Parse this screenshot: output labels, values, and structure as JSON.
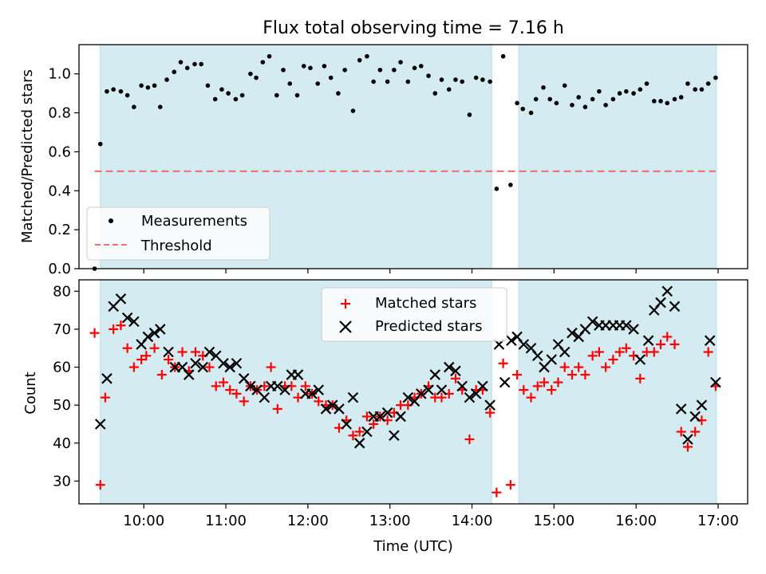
{
  "chart_data": [
    {
      "type": "scatter",
      "title": "Flux total observing time = 7.16 h",
      "xlabel": "",
      "ylabel": "Matched/Predicted stars",
      "xlim": [
        9.21,
        17.36
      ],
      "ylim": [
        0,
        1.15
      ],
      "yticks": [
        0.0,
        0.2,
        0.4,
        0.6,
        0.8,
        1.0
      ],
      "ytick_labels": [
        "0.0",
        "0.2",
        "0.4",
        "0.6",
        "0.8",
        "1.0"
      ],
      "shaded_ranges": [
        [
          9.47,
          14.24
        ],
        [
          14.57,
          16.98
        ]
      ],
      "legend_position": "lower-left",
      "series": [
        {
          "name": "Measurements",
          "marker": "dot",
          "color": "#000000",
          "x": [
            9.4,
            9.47,
            9.55,
            9.63,
            9.72,
            9.8,
            9.88,
            9.97,
            10.05,
            10.13,
            10.2,
            10.28,
            10.37,
            10.45,
            10.53,
            10.62,
            10.7,
            10.78,
            10.87,
            10.95,
            11.03,
            11.12,
            11.2,
            11.3,
            11.37,
            11.45,
            11.53,
            11.62,
            11.7,
            11.78,
            11.87,
            11.95,
            12.03,
            12.12,
            12.2,
            12.28,
            12.37,
            12.45,
            12.55,
            12.63,
            12.72,
            12.8,
            12.88,
            12.97,
            13.05,
            13.13,
            13.22,
            13.3,
            13.38,
            13.47,
            13.55,
            13.63,
            13.72,
            13.8,
            13.88,
            13.97,
            14.05,
            14.13,
            14.22,
            14.3,
            14.38,
            14.47,
            14.55,
            14.62,
            14.72,
            14.78,
            14.87,
            14.95,
            15.03,
            15.13,
            15.22,
            15.3,
            15.38,
            15.47,
            15.55,
            15.63,
            15.72,
            15.8,
            15.88,
            15.97,
            16.05,
            16.13,
            16.22,
            16.3,
            16.38,
            16.47,
            16.55,
            16.63,
            16.72,
            16.8,
            16.88,
            16.97
          ],
          "y": [
            0.0,
            0.64,
            0.91,
            0.92,
            0.91,
            0.89,
            0.83,
            0.94,
            0.93,
            0.94,
            0.83,
            0.97,
            1.01,
            1.06,
            1.03,
            1.05,
            1.05,
            0.94,
            0.87,
            0.92,
            0.9,
            0.87,
            0.89,
            1.0,
            0.98,
            1.06,
            1.09,
            0.89,
            1.02,
            0.95,
            0.89,
            1.04,
            1.03,
            0.95,
            1.04,
            0.98,
            0.9,
            1.02,
            0.81,
            1.07,
            1.09,
            0.96,
            1.02,
            0.96,
            1.02,
            1.06,
            0.96,
            1.03,
            1.04,
            0.99,
            0.9,
            0.97,
            0.92,
            0.97,
            0.96,
            0.79,
            0.98,
            0.97,
            0.96,
            0.41,
            1.09,
            0.43,
            0.85,
            0.82,
            0.8,
            0.87,
            0.93,
            0.87,
            0.85,
            0.94,
            0.84,
            0.88,
            0.83,
            0.87,
            0.91,
            0.84,
            0.87,
            0.9,
            0.91,
            0.9,
            0.92,
            0.95,
            0.86,
            0.86,
            0.85,
            0.87,
            0.88,
            0.95,
            0.92,
            0.92,
            0.95,
            0.98
          ]
        },
        {
          "name": "Threshold",
          "marker": "dashed-line",
          "color": "#f07070",
          "x": [
            9.4,
            16.97
          ],
          "y": [
            0.5,
            0.5
          ]
        }
      ]
    },
    {
      "type": "scatter",
      "title": "",
      "xlabel": "Time (UTC)",
      "ylabel": "Count",
      "xlim": [
        9.21,
        17.36
      ],
      "ylim": [
        24,
        83
      ],
      "yticks": [
        30,
        40,
        50,
        60,
        70,
        80
      ],
      "ytick_labels": [
        "30",
        "40",
        "50",
        "60",
        "70",
        "80"
      ],
      "xticks": [
        10,
        11,
        12,
        13,
        14,
        15,
        16,
        17
      ],
      "xtick_labels": [
        "10:00",
        "11:00",
        "12:00",
        "13:00",
        "14:00",
        "15:00",
        "16:00",
        "17:00"
      ],
      "shaded_ranges": [
        [
          9.47,
          14.24
        ],
        [
          14.57,
          16.98
        ]
      ],
      "legend_position": "top-center",
      "series": [
        {
          "name": "Matched stars",
          "marker": "plus",
          "color": "#ff0000",
          "x": [
            9.4,
            9.47,
            9.53,
            9.63,
            9.72,
            9.8,
            9.88,
            9.97,
            10.03,
            10.13,
            10.22,
            10.3,
            10.38,
            10.47,
            10.55,
            10.63,
            10.72,
            10.8,
            10.88,
            10.97,
            11.05,
            11.13,
            11.22,
            11.3,
            11.38,
            11.47,
            11.55,
            11.63,
            11.72,
            11.8,
            11.88,
            11.97,
            12.05,
            12.13,
            12.22,
            12.3,
            12.38,
            12.47,
            12.55,
            12.63,
            12.72,
            12.8,
            12.88,
            12.97,
            13.05,
            13.13,
            13.22,
            13.3,
            13.38,
            13.47,
            13.55,
            13.63,
            13.72,
            13.8,
            13.88,
            13.97,
            14.05,
            14.13,
            14.22,
            14.3,
            14.38,
            14.47,
            14.55,
            14.63,
            14.72,
            14.8,
            14.88,
            14.97,
            15.05,
            15.13,
            15.22,
            15.3,
            15.38,
            15.47,
            15.55,
            15.63,
            15.72,
            15.8,
            15.88,
            15.97,
            16.05,
            16.13,
            16.22,
            16.3,
            16.38,
            16.47,
            16.55,
            16.63,
            16.72,
            16.8,
            16.88,
            16.97
          ],
          "y": [
            69,
            29,
            52,
            70,
            71,
            65,
            60,
            62,
            63,
            65,
            58,
            62,
            60,
            64,
            59,
            64,
            63,
            60,
            55,
            56,
            54,
            53,
            51,
            55,
            54,
            55,
            60,
            49,
            55,
            55,
            52,
            55,
            53,
            51,
            50,
            50,
            44,
            46,
            42,
            43,
            47,
            45,
            47,
            46,
            48,
            50,
            50,
            52,
            53,
            55,
            52,
            52,
            53,
            57,
            54,
            41,
            54,
            54,
            48,
            27,
            61,
            29,
            58,
            54,
            52,
            55,
            56,
            54,
            56,
            60,
            58,
            60,
            58,
            63,
            64,
            60,
            62,
            64,
            65,
            63,
            57,
            64,
            64,
            66,
            68,
            66,
            43,
            39,
            43,
            46,
            64,
            55
          ]
        },
        {
          "name": "Predicted stars",
          "marker": "x",
          "color": "#000000",
          "x": [
            9.47,
            9.55,
            9.63,
            9.72,
            9.8,
            9.88,
            9.97,
            10.05,
            10.13,
            10.2,
            10.3,
            10.38,
            10.47,
            10.55,
            10.63,
            10.72,
            10.8,
            10.88,
            10.97,
            11.05,
            11.13,
            11.22,
            11.3,
            11.38,
            11.47,
            11.55,
            11.63,
            11.72,
            11.8,
            11.88,
            11.97,
            12.05,
            12.13,
            12.22,
            12.3,
            12.38,
            12.47,
            12.55,
            12.63,
            12.72,
            12.8,
            12.88,
            12.97,
            13.05,
            13.13,
            13.22,
            13.3,
            13.38,
            13.47,
            13.55,
            13.63,
            13.72,
            13.8,
            13.88,
            13.97,
            14.05,
            14.13,
            14.22,
            14.33,
            14.4,
            14.48,
            14.55,
            14.63,
            14.72,
            14.8,
            14.88,
            14.97,
            15.05,
            15.13,
            15.22,
            15.3,
            15.38,
            15.47,
            15.55,
            15.63,
            15.72,
            15.8,
            15.88,
            15.97,
            16.05,
            16.15,
            16.22,
            16.3,
            16.38,
            16.47,
            16.55,
            16.63,
            16.72,
            16.8,
            16.9,
            16.97
          ],
          "y": [
            45,
            57,
            76,
            78,
            73,
            72,
            66,
            68,
            69,
            70,
            64,
            60,
            60,
            58,
            61,
            60,
            64,
            63,
            61,
            60,
            61,
            57,
            55,
            54,
            52,
            55,
            55,
            54,
            58,
            58,
            53,
            53,
            54,
            49,
            50,
            49,
            45,
            52,
            40,
            43,
            47,
            47,
            48,
            42,
            47,
            52,
            51,
            53,
            54,
            58,
            54,
            60,
            59,
            55,
            52,
            53,
            55,
            50,
            66,
            56,
            67,
            68,
            66,
            65,
            63,
            60,
            62,
            66,
            64,
            69,
            68,
            70,
            72,
            71,
            71,
            71,
            71,
            71,
            70,
            62,
            67,
            75,
            77,
            80,
            76,
            49,
            41,
            47,
            50,
            67,
            56
          ]
        }
      ]
    }
  ],
  "legend": {
    "measurements": "Measurements",
    "threshold": "Threshold",
    "matched": "Matched stars",
    "predicted": "Predicted stars"
  },
  "colors": {
    "shade": "#d4ebf1",
    "shade_edge": "#b9dbe3",
    "threshold": "#f07070",
    "matched": "#ff0000",
    "predicted": "#000000",
    "measurement": "#000000"
  }
}
